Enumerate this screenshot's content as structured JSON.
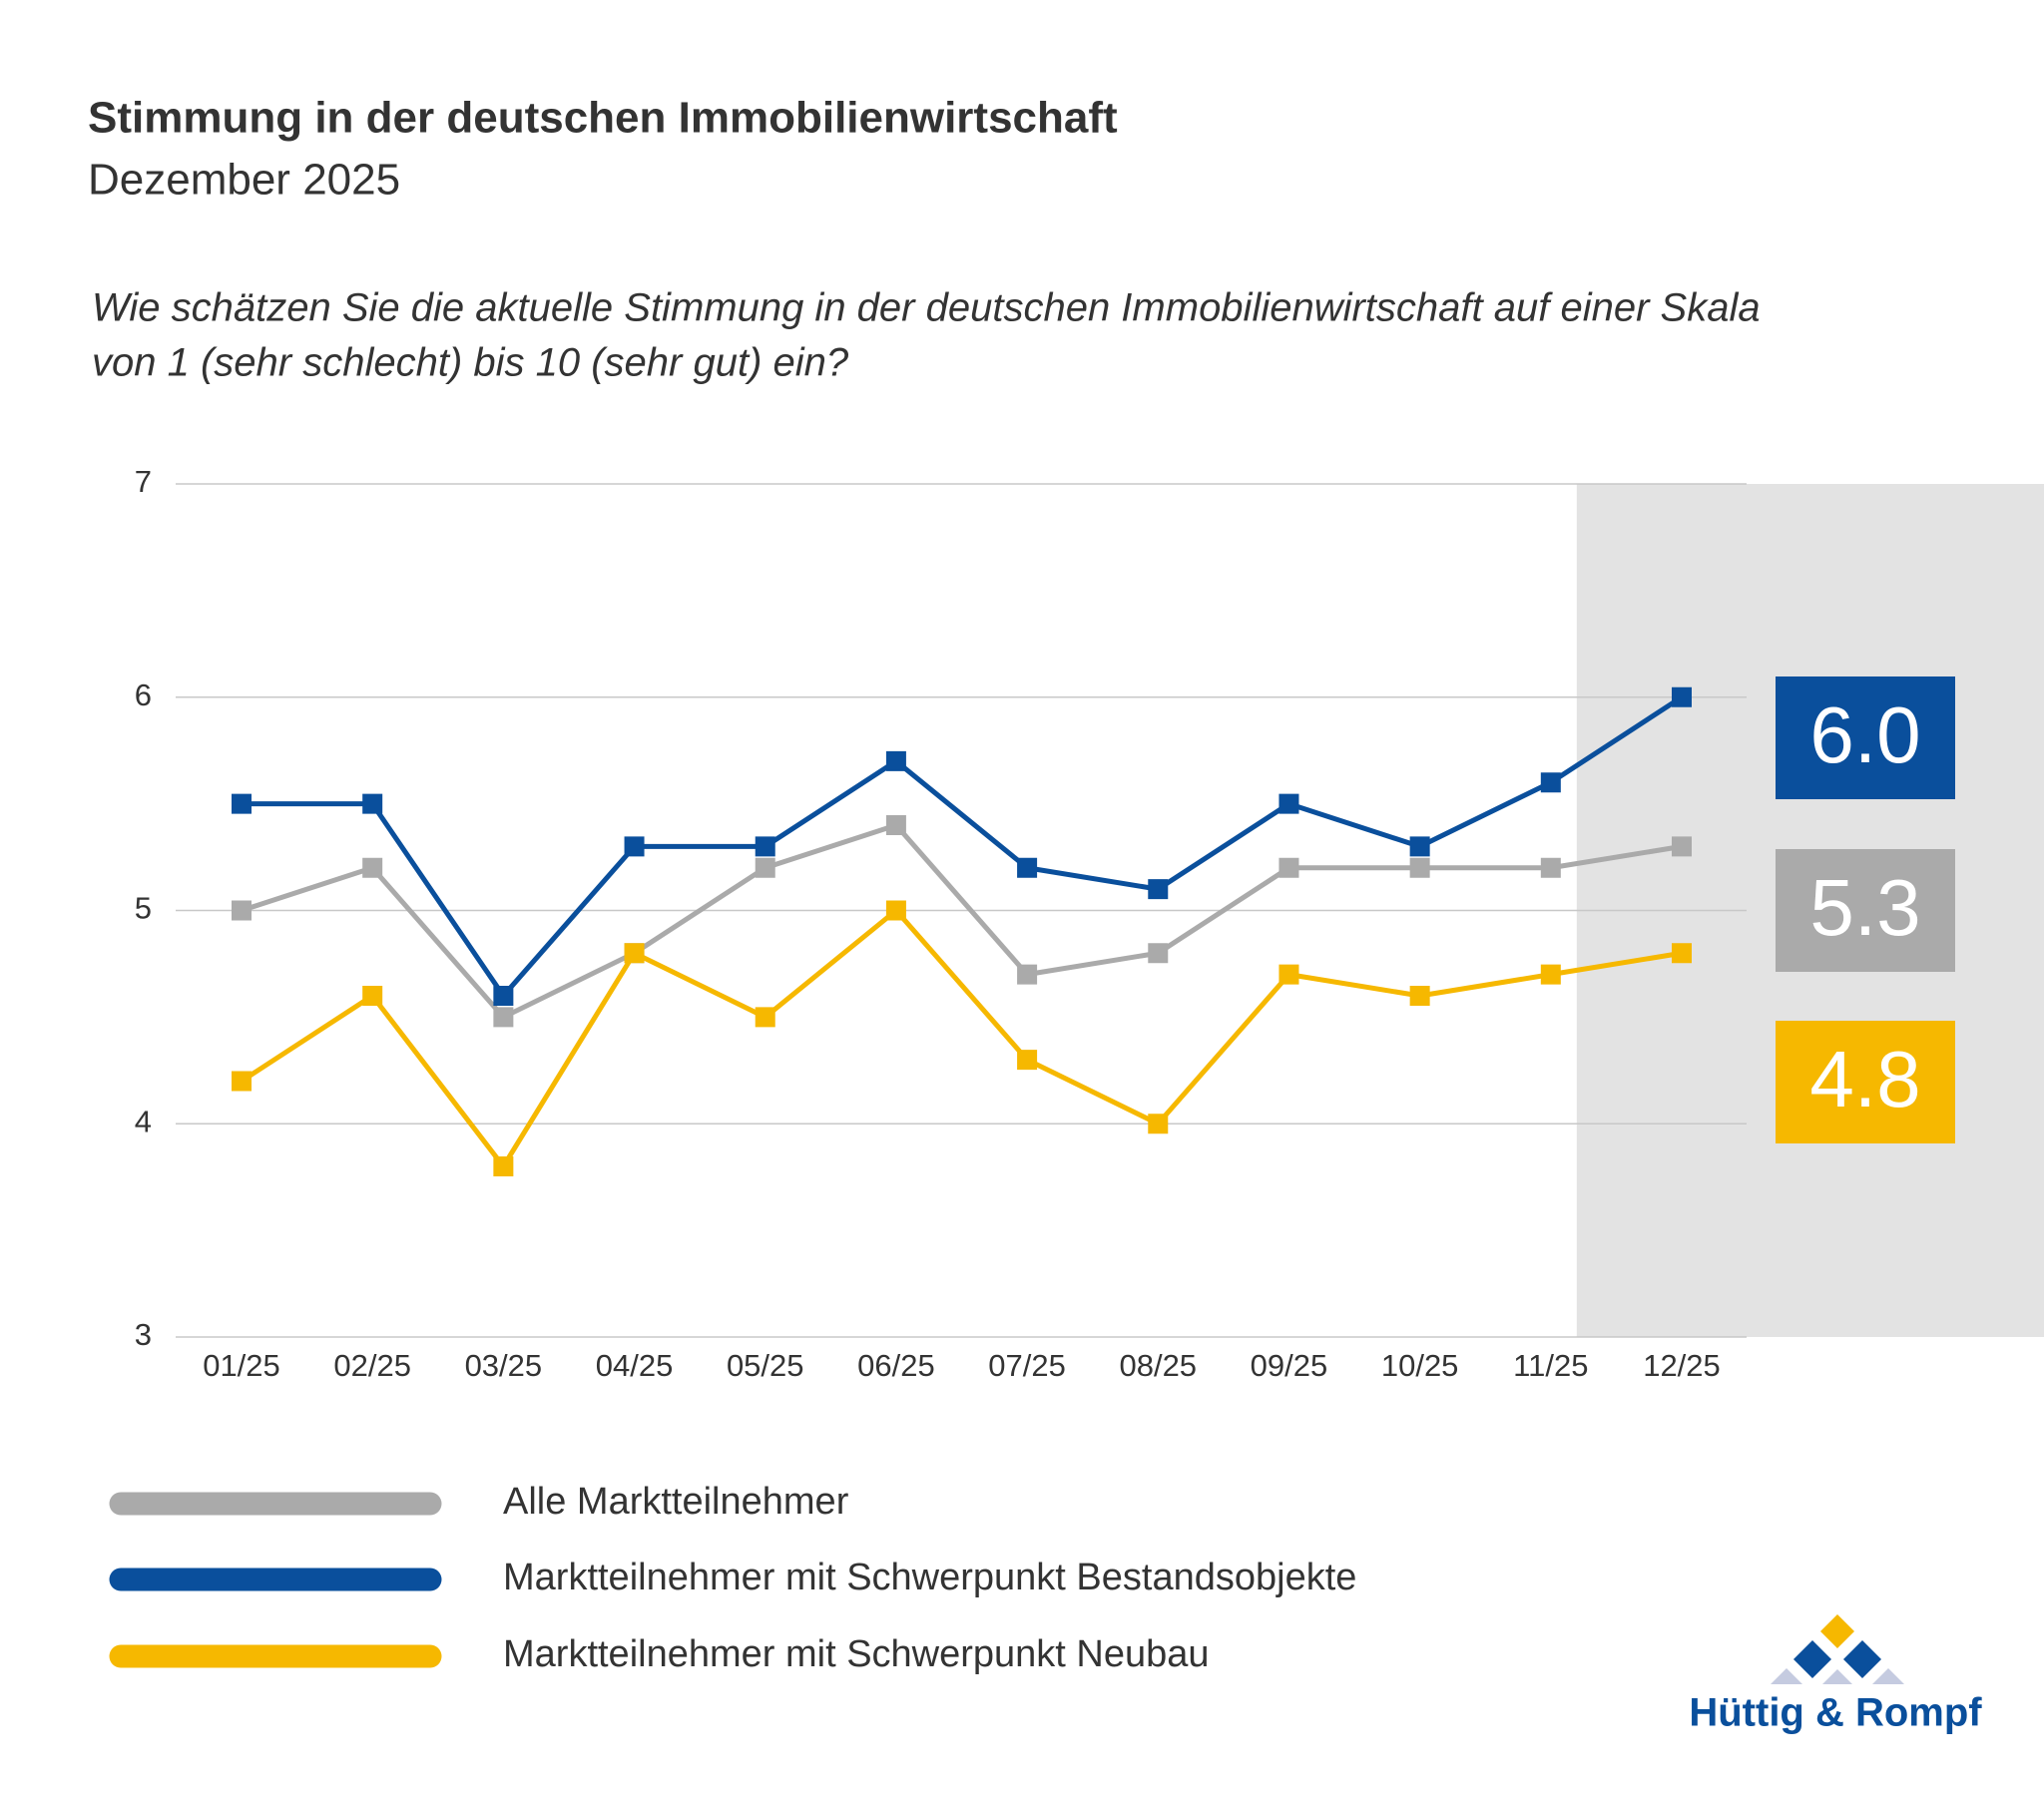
{
  "chart_data": {
    "type": "line",
    "title": "Stimmung in der deutschen Immobilienwirtschaft",
    "subtitle": "Dezember 2025",
    "question": [
      "Wie schätzen Sie die aktuelle Stimmung in der deutschen Immobilienwirtschaft auf einer Skala",
      "von 1 (sehr schlecht) bis 10 (sehr gut) ein?"
    ],
    "categories": [
      "01/25",
      "02/25",
      "03/25",
      "04/25",
      "05/25",
      "06/25",
      "07/25",
      "08/25",
      "09/25",
      "10/25",
      "11/25",
      "12/25"
    ],
    "series": [
      {
        "name": "Alle Marktteilnehmer",
        "color": "#aaaaaa",
        "values": [
          5.0,
          5.2,
          4.5,
          4.8,
          5.2,
          5.4,
          4.7,
          4.8,
          5.2,
          5.2,
          5.2,
          5.3
        ],
        "value_labels": [
          null,
          null,
          null,
          null,
          null,
          null,
          null,
          null,
          null,
          null,
          null,
          "5.3"
        ]
      },
      {
        "name": "Marktteilnehmer mit Schwerpunkt Bestandsobjekte",
        "color": "#0a4f9c",
        "values": [
          5.5,
          5.5,
          4.6,
          5.3,
          5.3,
          5.7,
          5.2,
          5.1,
          5.5,
          5.3,
          5.6,
          6.0
        ],
        "value_labels": [
          null,
          null,
          null,
          null,
          null,
          null,
          null,
          null,
          null,
          null,
          null,
          "6.0"
        ]
      },
      {
        "name": "Marktteilnehmer mit Schwerpunkt Neubau",
        "color": "#f6b800",
        "values": [
          4.2,
          4.6,
          3.8,
          4.8,
          4.5,
          5.0,
          4.3,
          4.0,
          4.7,
          4.6,
          4.7,
          4.8
        ],
        "value_labels": [
          null,
          null,
          null,
          null,
          null,
          null,
          null,
          null,
          null,
          null,
          null,
          "4.8"
        ]
      }
    ],
    "ylim": [
      3,
      7
    ],
    "yticks": [
      3,
      4,
      5,
      6,
      7
    ],
    "grid": true,
    "highlight_color": "#e3e3e3"
  },
  "logo": {
    "text": "Hüttig & Rompf"
  }
}
